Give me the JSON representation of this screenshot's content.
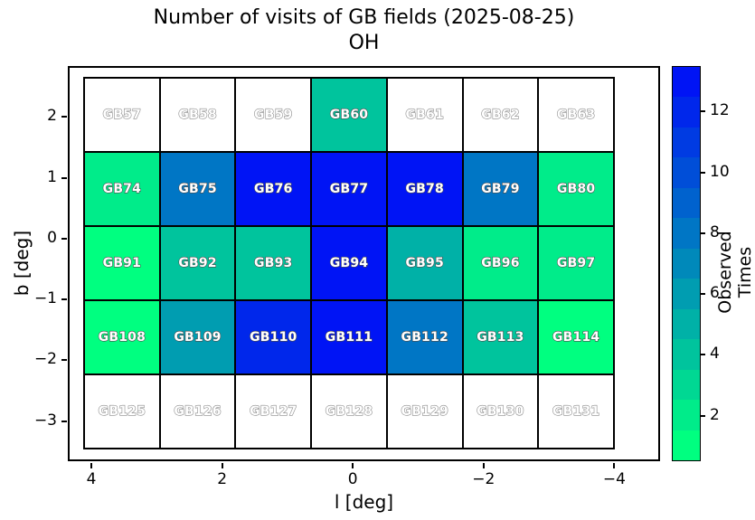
{
  "title": {
    "line1": "Number of visits of GB fields (2025-08-25)",
    "line2": "OH"
  },
  "axes": {
    "xlabel": "l [deg]",
    "ylabel": "b [deg]",
    "x_ticks": [
      4,
      2,
      0,
      -2,
      -4
    ],
    "y_ticks": [
      2,
      1,
      0,
      -1,
      -2,
      -3
    ]
  },
  "colorbar": {
    "label": "Observed Times",
    "ticks": [
      2,
      4,
      6,
      8,
      10,
      12
    ],
    "vmin": 0.5,
    "vmax": 13.5,
    "levels": 13,
    "palette": [
      "#00FF80",
      "#00EC8A",
      "#00D893",
      "#00C49D",
      "#00B1A7",
      "#009DB1",
      "#0089BA",
      "#0076C5",
      "#0062CE",
      "#004ED8",
      "#003BE2",
      "#0027EB",
      "#0014F5"
    ]
  },
  "colors": {
    "background": "#ffffff",
    "spine": "#000000",
    "cell_border": "#000000",
    "empty_cell": "#ffffff",
    "label_fill": "#ffffff",
    "label_outline_filled": "#4d4d4d",
    "label_outline_empty": "#8a8a8a",
    "text": "#000000"
  },
  "chart_data": {
    "type": "heatmap",
    "title": "Number of visits of GB fields (2025-08-25)",
    "subtitle": "OH",
    "xlabel": "l [deg]",
    "ylabel": "b [deg]",
    "x_axis_inverted": true,
    "x_tick_labels": [
      "4",
      "2",
      "0",
      "−2",
      "−4"
    ],
    "y_tick_labels": [
      "2",
      "1",
      "0",
      "−1",
      "−2",
      "−3"
    ],
    "colorbar_label": "Observed Times",
    "colorbar_ticks": [
      2,
      4,
      6,
      8,
      10,
      12
    ],
    "colorbar_range": [
      0.5,
      13.5
    ],
    "colormap": "winter_r, 13 discrete levels (green=low, blue=high)",
    "l_centers_deg_approx": [
      3.45,
      2.3,
      1.15,
      0,
      -1.15,
      -2.3,
      -3.45
    ],
    "b_centers_deg_approx": [
      2.05,
      0.8,
      -0.4,
      -1.65,
      -2.85
    ],
    "rows": [
      {
        "fields": [
          "GB57",
          "GB58",
          "GB59",
          "GB60",
          "GB61",
          "GB62",
          "GB63"
        ],
        "values": [
          null,
          null,
          null,
          4,
          null,
          null,
          null
        ]
      },
      {
        "fields": [
          "GB74",
          "GB75",
          "GB76",
          "GB77",
          "GB78",
          "GB79",
          "GB80"
        ],
        "values": [
          2,
          8,
          13,
          13,
          13,
          8,
          2
        ]
      },
      {
        "fields": [
          "GB91",
          "GB92",
          "GB93",
          "GB94",
          "GB95",
          "GB96",
          "GB97"
        ],
        "values": [
          1,
          4,
          4,
          13,
          5,
          2,
          2
        ]
      },
      {
        "fields": [
          "GB108",
          "GB109",
          "GB110",
          "GB111",
          "GB112",
          "GB113",
          "GB114"
        ],
        "values": [
          1,
          6,
          12,
          13,
          8,
          4,
          1
        ]
      },
      {
        "fields": [
          "GB125",
          "GB126",
          "GB127",
          "GB128",
          "GB129",
          "GB130",
          "GB131"
        ],
        "values": [
          null,
          null,
          null,
          null,
          null,
          null,
          null
        ]
      }
    ]
  }
}
